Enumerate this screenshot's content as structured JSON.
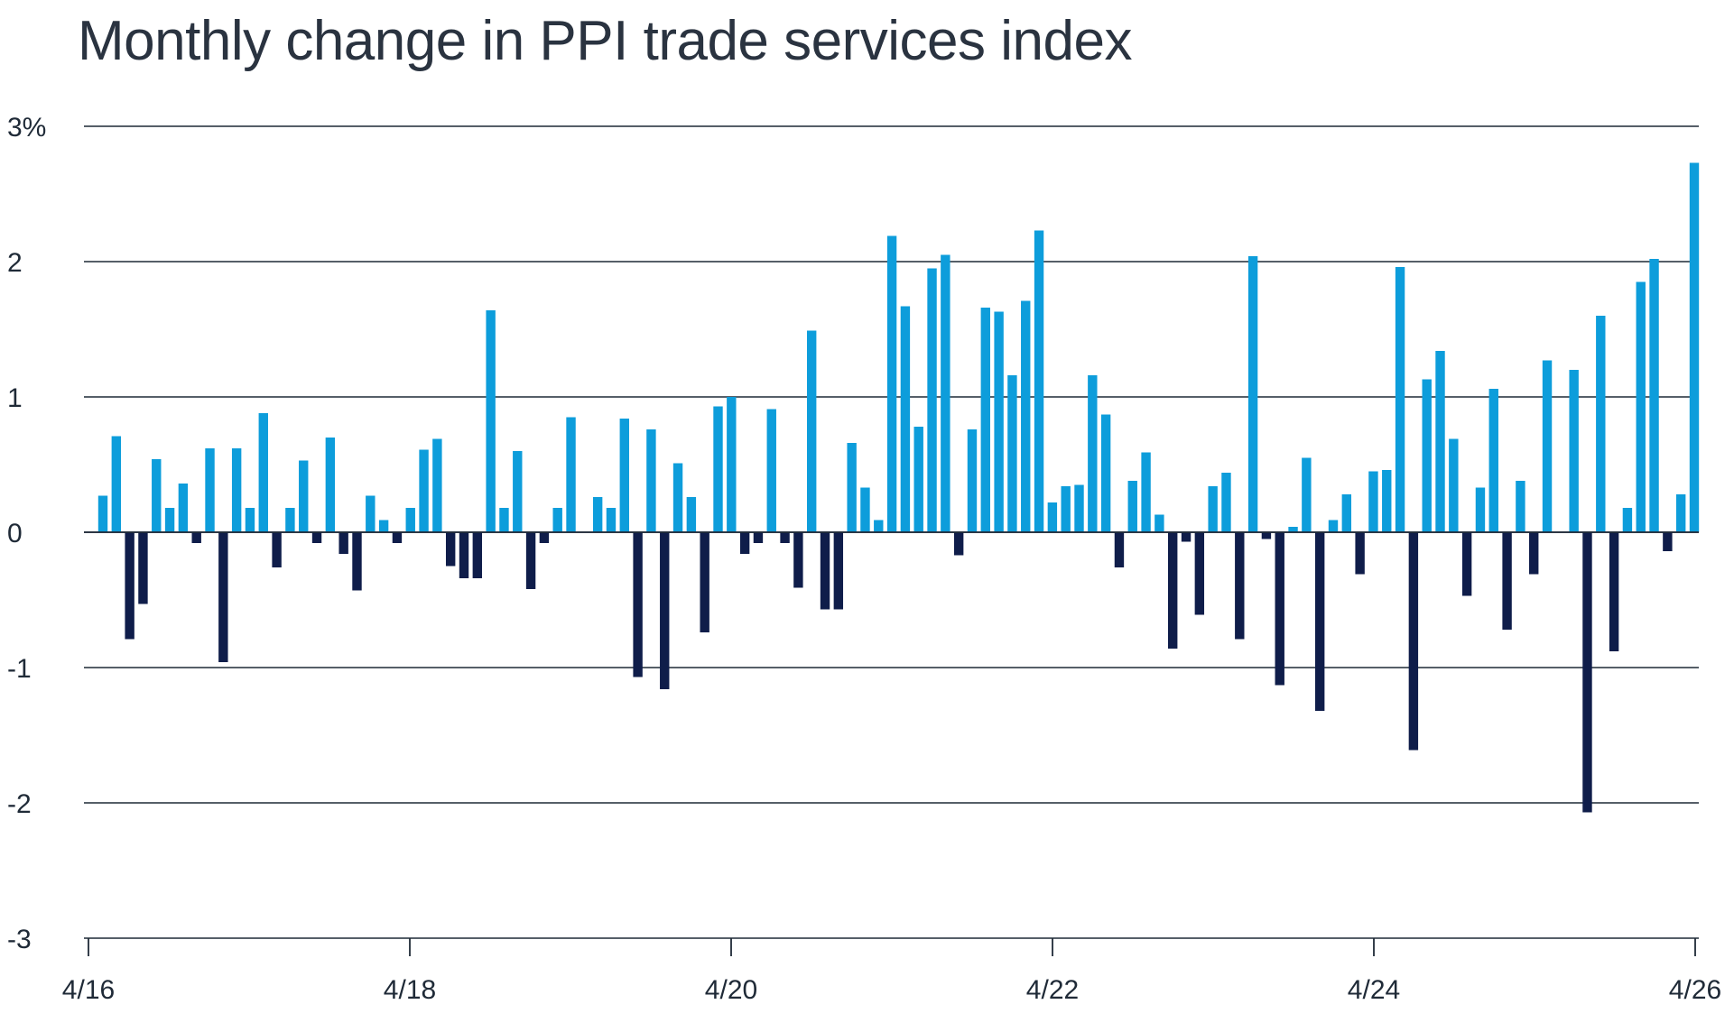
{
  "chart_data": {
    "type": "bar",
    "title": "Monthly change in PPI trade services index",
    "xlabel": "",
    "ylabel": "",
    "ylim": [
      -3,
      3
    ],
    "y_ticks": [
      {
        "value": 3,
        "label": "3%"
      },
      {
        "value": 2,
        "label": "2"
      },
      {
        "value": 1,
        "label": "1"
      },
      {
        "value": 0,
        "label": "0"
      },
      {
        "value": -1,
        "label": "-1"
      },
      {
        "value": -2,
        "label": "-2"
      },
      {
        "value": -3,
        "label": "-3"
      }
    ],
    "x_ticks": [
      "4/16",
      "4/18",
      "4/20",
      "4/22",
      "4/24",
      "4/26"
    ],
    "x_start": "2016-04",
    "x_end": "2026-04",
    "grid": true,
    "colors": {
      "positive": "#0d9ddb",
      "negative": "#0f1d4a",
      "grid": "#1f2a37",
      "title": "#2a3340"
    },
    "values": [
      0.27,
      0.71,
      -0.79,
      -0.53,
      0.54,
      0.18,
      0.36,
      -0.08,
      0.62,
      -0.96,
      0.62,
      0.18,
      0.88,
      -0.26,
      0.18,
      0.53,
      -0.08,
      0.7,
      -0.16,
      -0.43,
      0.27,
      0.09,
      -0.08,
      0.18,
      0.61,
      0.69,
      -0.25,
      -0.34,
      -0.34,
      1.64,
      0.18,
      0.6,
      -0.42,
      -0.08,
      0.18,
      0.85,
      0.0,
      0.26,
      0.18,
      0.84,
      -1.07,
      0.76,
      -1.16,
      0.51,
      0.26,
      -0.74,
      0.93,
      1.0,
      -0.16,
      -0.08,
      0.91,
      -0.08,
      -0.41,
      1.49,
      -0.57,
      -0.57,
      0.66,
      0.33,
      0.09,
      2.19,
      1.67,
      0.78,
      1.95,
      2.05,
      -0.17,
      0.76,
      1.66,
      1.63,
      1.16,
      1.71,
      2.23,
      0.22,
      0.34,
      0.35,
      1.16,
      0.87,
      -0.26,
      0.38,
      0.59,
      0.13,
      -0.86,
      -0.07,
      -0.61,
      0.34,
      0.44,
      -0.79,
      2.04,
      -0.05,
      -1.13,
      0.04,
      0.55,
      -1.32,
      0.09,
      0.28,
      -0.31,
      0.45,
      0.46,
      1.96,
      -1.61,
      1.13,
      1.34,
      0.69,
      -0.47,
      0.33,
      1.06,
      -0.72,
      0.38,
      -0.31,
      1.27,
      0.0,
      1.2,
      -2.07,
      1.6,
      -0.88,
      0.18,
      1.85,
      2.02,
      -0.14,
      0.28,
      2.73
    ]
  }
}
